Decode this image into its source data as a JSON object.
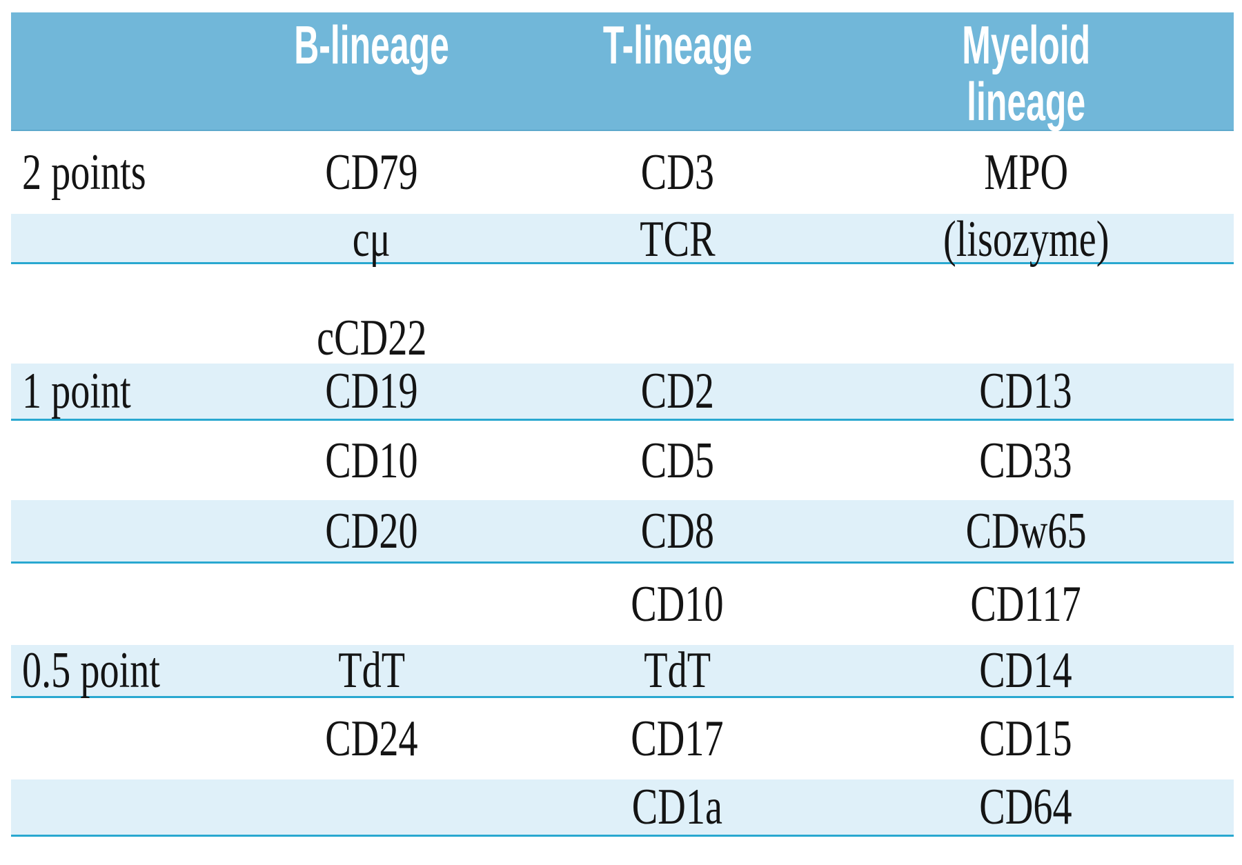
{
  "colors": {
    "header_bg": "#71b7d9",
    "shaded_row_bg": "#dff0f9",
    "divider": "#29a8d0",
    "header_text": "#ffffff",
    "body_text": "#141414",
    "page_bg": "#ffffff"
  },
  "chart_data": {
    "type": "table",
    "title": "Immunophenotypic lineage scoring table",
    "columns": {
      "score": "",
      "b": "B-lineage",
      "t": "T-lineage",
      "m": "Myeloid\nlineage"
    },
    "rows": [
      {
        "label": "2 points",
        "b": "CD79",
        "t": "CD3",
        "m": "MPO",
        "shaded": false
      },
      {
        "label": "",
        "b": "cμ",
        "t": "TCR",
        "m": "(lisozyme)",
        "shaded": true
      },
      {
        "label": "",
        "b": "",
        "t": "",
        "m": "",
        "shaded": false
      },
      {
        "label": "",
        "b": "cCD22",
        "t": "",
        "m": "",
        "shaded": false
      },
      {
        "label": "1 point",
        "b": "CD19",
        "t": "CD2",
        "m": "CD13",
        "shaded": true
      },
      {
        "label": "",
        "b": "CD10",
        "t": "CD5",
        "m": "CD33",
        "shaded": false
      },
      {
        "label": "",
        "b": "CD20",
        "t": "CD8",
        "m": "CDw65",
        "shaded": true
      },
      {
        "label": "",
        "b": "",
        "t": "CD10",
        "m": "CD117",
        "shaded": false
      },
      {
        "label": "0.5 point",
        "b": "TdT",
        "t": "TdT",
        "m": "CD14",
        "shaded": true
      },
      {
        "label": "",
        "b": "CD24",
        "t": "CD17",
        "m": "CD15",
        "shaded": false
      },
      {
        "label": "",
        "b": "",
        "t": "CD1a",
        "m": "CD64",
        "shaded": true
      }
    ]
  }
}
